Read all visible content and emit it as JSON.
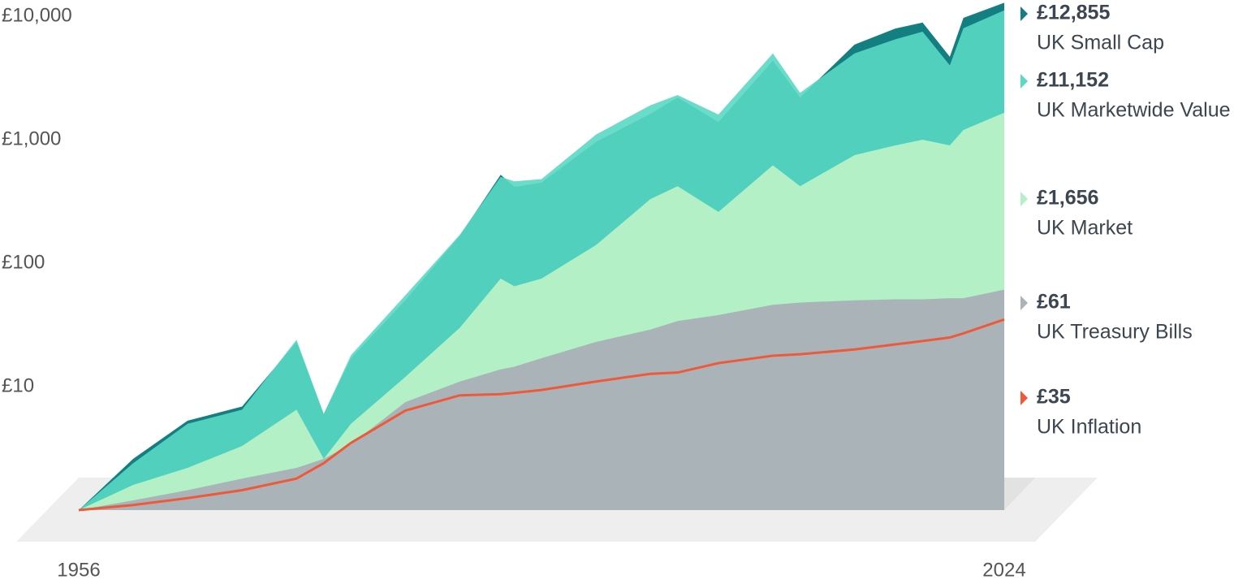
{
  "chart_data": {
    "type": "area",
    "log": true,
    "x": [
      1956,
      1960,
      1964,
      1968,
      1972,
      1974,
      1976,
      1980,
      1984,
      1987,
      1988,
      1990,
      1994,
      1998,
      2000,
      2003,
      2007,
      2009,
      2013,
      2016,
      2018,
      2020,
      2021,
      2024
    ],
    "xlim": [
      1956,
      2024
    ],
    "xticks": [
      1956,
      2024
    ],
    "ylim": [
      1,
      10000
    ],
    "yticks": [
      {
        "value": 10000,
        "label": "£10,000"
      },
      {
        "value": 1000,
        "label": "£1,000"
      },
      {
        "value": 100,
        "label": "£100"
      },
      {
        "value": 10,
        "label": "£10"
      }
    ],
    "series": [
      {
        "name": "UK Small Cap",
        "color": "#137f80",
        "values": [
          1,
          2.6,
          5.3,
          6.9,
          23,
          6,
          17,
          50,
          167,
          520,
          415,
          450,
          960,
          1620,
          2200,
          1390,
          4370,
          2200,
          5900,
          7950,
          8900,
          4700,
          9700,
          12855
        ],
        "value_labels": [
          null,
          null,
          null,
          null,
          null,
          null,
          null,
          null,
          null,
          null,
          null,
          null,
          null,
          null,
          null,
          null,
          null,
          null,
          null,
          null,
          null,
          null,
          null,
          "£12,855"
        ]
      },
      {
        "name": "UK Marketwide Value",
        "color": "#5ad9c4",
        "values": [
          1,
          2.4,
          5,
          6.5,
          24,
          6,
          18,
          55,
          170,
          500,
          460,
          480,
          1100,
          1900,
          2300,
          1600,
          5000,
          2400,
          5000,
          6500,
          7500,
          4000,
          8000,
          11152
        ],
        "value_labels": [
          null,
          null,
          null,
          null,
          null,
          null,
          null,
          null,
          null,
          null,
          null,
          null,
          null,
          null,
          null,
          null,
          null,
          null,
          null,
          null,
          null,
          null,
          null,
          "£11,152"
        ]
      },
      {
        "name": "UK Market",
        "color": "#b3f0c6",
        "values": [
          1,
          1.6,
          2.2,
          3.3,
          6.5,
          2.6,
          5,
          12,
          30,
          75,
          65,
          75,
          140,
          330,
          420,
          260,
          620,
          420,
          750,
          900,
          1000,
          900,
          1200,
          1656
        ],
        "value_labels": [
          null,
          null,
          null,
          null,
          null,
          null,
          null,
          null,
          null,
          null,
          null,
          null,
          null,
          null,
          null,
          null,
          null,
          null,
          null,
          null,
          null,
          null,
          null,
          "£1,656"
        ]
      },
      {
        "name": "UK Treasury Bills",
        "color": "#aab4b8",
        "values": [
          1,
          1.2,
          1.45,
          1.8,
          2.2,
          2.6,
          3.4,
          7.5,
          11,
          13.8,
          14.5,
          17,
          23,
          29,
          34,
          38,
          46,
          48,
          50,
          51,
          51,
          52,
          52,
          61
        ],
        "value_labels": [
          null,
          null,
          null,
          null,
          null,
          null,
          null,
          null,
          null,
          null,
          null,
          null,
          null,
          null,
          null,
          null,
          null,
          null,
          null,
          null,
          null,
          null,
          null,
          "£61"
        ]
      },
      {
        "name": "UK Inflation",
        "color": "#f0583a",
        "values": [
          1,
          1.1,
          1.25,
          1.45,
          1.8,
          2.4,
          3.5,
          6.4,
          8.5,
          8.7,
          8.9,
          9.4,
          11,
          12.7,
          13,
          15.5,
          17.8,
          18.3,
          20,
          22,
          23.4,
          25,
          27,
          35
        ],
        "value_labels": [
          null,
          null,
          null,
          null,
          null,
          null,
          null,
          null,
          null,
          null,
          null,
          null,
          null,
          null,
          null,
          null,
          null,
          null,
          null,
          null,
          null,
          null,
          null,
          "£35"
        ]
      }
    ]
  }
}
